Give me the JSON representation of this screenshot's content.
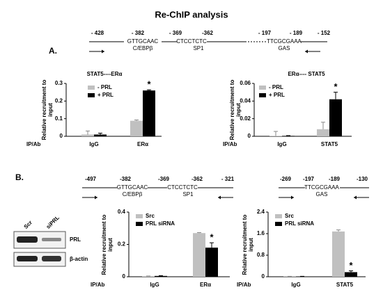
{
  "title": "Re-ChIP analysis",
  "panel_labels": [
    "A.",
    "B."
  ],
  "diagrams": [
    {
      "positions": [
        "- 428",
        "- 382",
        "- 369",
        "-362",
        "- 197",
        "- 189",
        "- 152"
      ],
      "sequences": [
        "GTTGCAAC",
        "CTCCTCTC",
        "TTCGCGAAA"
      ],
      "sites": [
        "C/EBPβ",
        "SP1",
        "GAS"
      ]
    },
    {
      "positions": [
        "-497",
        "-382",
        "-369",
        "-362",
        "- 321"
      ],
      "sequences": [
        "GTTGCAAC",
        "CTCCTCTC"
      ],
      "sites": [
        "C/EBPβ",
        "SP1"
      ]
    },
    {
      "positions": [
        "-269",
        "-197",
        "-189",
        "-130"
      ],
      "sequences": [
        "TTCGCGAAA"
      ],
      "sites": [
        "GAS"
      ]
    }
  ],
  "blot": {
    "lanes": [
      "Scr",
      "siPRL"
    ],
    "rows": [
      "PRL",
      "β-actin"
    ]
  },
  "chart_data": [
    {
      "type": "bar",
      "title": "STAT5----ERα",
      "ylabel": "Relative recruitment to input",
      "xlabel": "IP/Ab",
      "categories": [
        "IgG",
        "ERα"
      ],
      "series": [
        {
          "name": "- PRL",
          "color": "#c0c0c0",
          "values": [
            0.01,
            0.088
          ],
          "errors": [
            0.02,
            0.005
          ]
        },
        {
          "name": "+ PRL",
          "color": "#000000",
          "values": [
            0.01,
            0.26
          ],
          "errors": [
            0.008,
            0.004
          ]
        }
      ],
      "ylim": [
        0,
        0.3
      ],
      "yticks": [
        0,
        0.1,
        0.2,
        0.3
      ],
      "annotation": "*"
    },
    {
      "type": "bar",
      "title": "ERα---- STAT5",
      "ylabel": "Relative recruitment to input",
      "xlabel": "IP/Ab",
      "categories": [
        "IgG",
        "STAT5"
      ],
      "series": [
        {
          "name": "- PRL",
          "color": "#c0c0c0",
          "values": [
            0.0005,
            0.008
          ],
          "errors": [
            0.005,
            0.008
          ]
        },
        {
          "name": "+ PRL",
          "color": "#000000",
          "values": [
            0.0005,
            0.042
          ],
          "errors": [
            0.0003,
            0.008
          ]
        }
      ],
      "ylim": [
        0,
        0.06
      ],
      "yticks": [
        0,
        0.02,
        0.04,
        0.06
      ],
      "annotation": "*"
    },
    {
      "type": "bar",
      "ylabel": "Relative recruitment to input",
      "xlabel": "IP/Ab",
      "categories": [
        "IgG",
        "ERα"
      ],
      "series": [
        {
          "name": "Src",
          "color": "#c0c0c0",
          "values": [
            0.003,
            0.27
          ],
          "errors": [
            0.002,
            0.003
          ]
        },
        {
          "name": "PRL siRNA",
          "color": "#000000",
          "values": [
            0.005,
            0.18
          ],
          "errors": [
            0.002,
            0.03
          ]
        }
      ],
      "ylim": [
        0,
        0.4
      ],
      "yticks": [
        0,
        0.2,
        0.4
      ],
      "annotation": "*"
    },
    {
      "type": "bar",
      "ylabel": "Relative recruitment to input",
      "xlabel": "IP/Ab",
      "categories": [
        "IgG",
        "STAT5"
      ],
      "series": [
        {
          "name": "Src",
          "color": "#c0c0c0",
          "values": [
            0.01,
            1.68
          ],
          "errors": [
            0.005,
            0.06
          ]
        },
        {
          "name": "PRL siRNA",
          "color": "#000000",
          "values": [
            0.01,
            0.17
          ],
          "errors": [
            0.005,
            0.05
          ]
        }
      ],
      "ylim": [
        0,
        2.4
      ],
      "yticks": [
        0,
        0.8,
        1.6,
        2.4
      ],
      "annotation": "*"
    }
  ]
}
